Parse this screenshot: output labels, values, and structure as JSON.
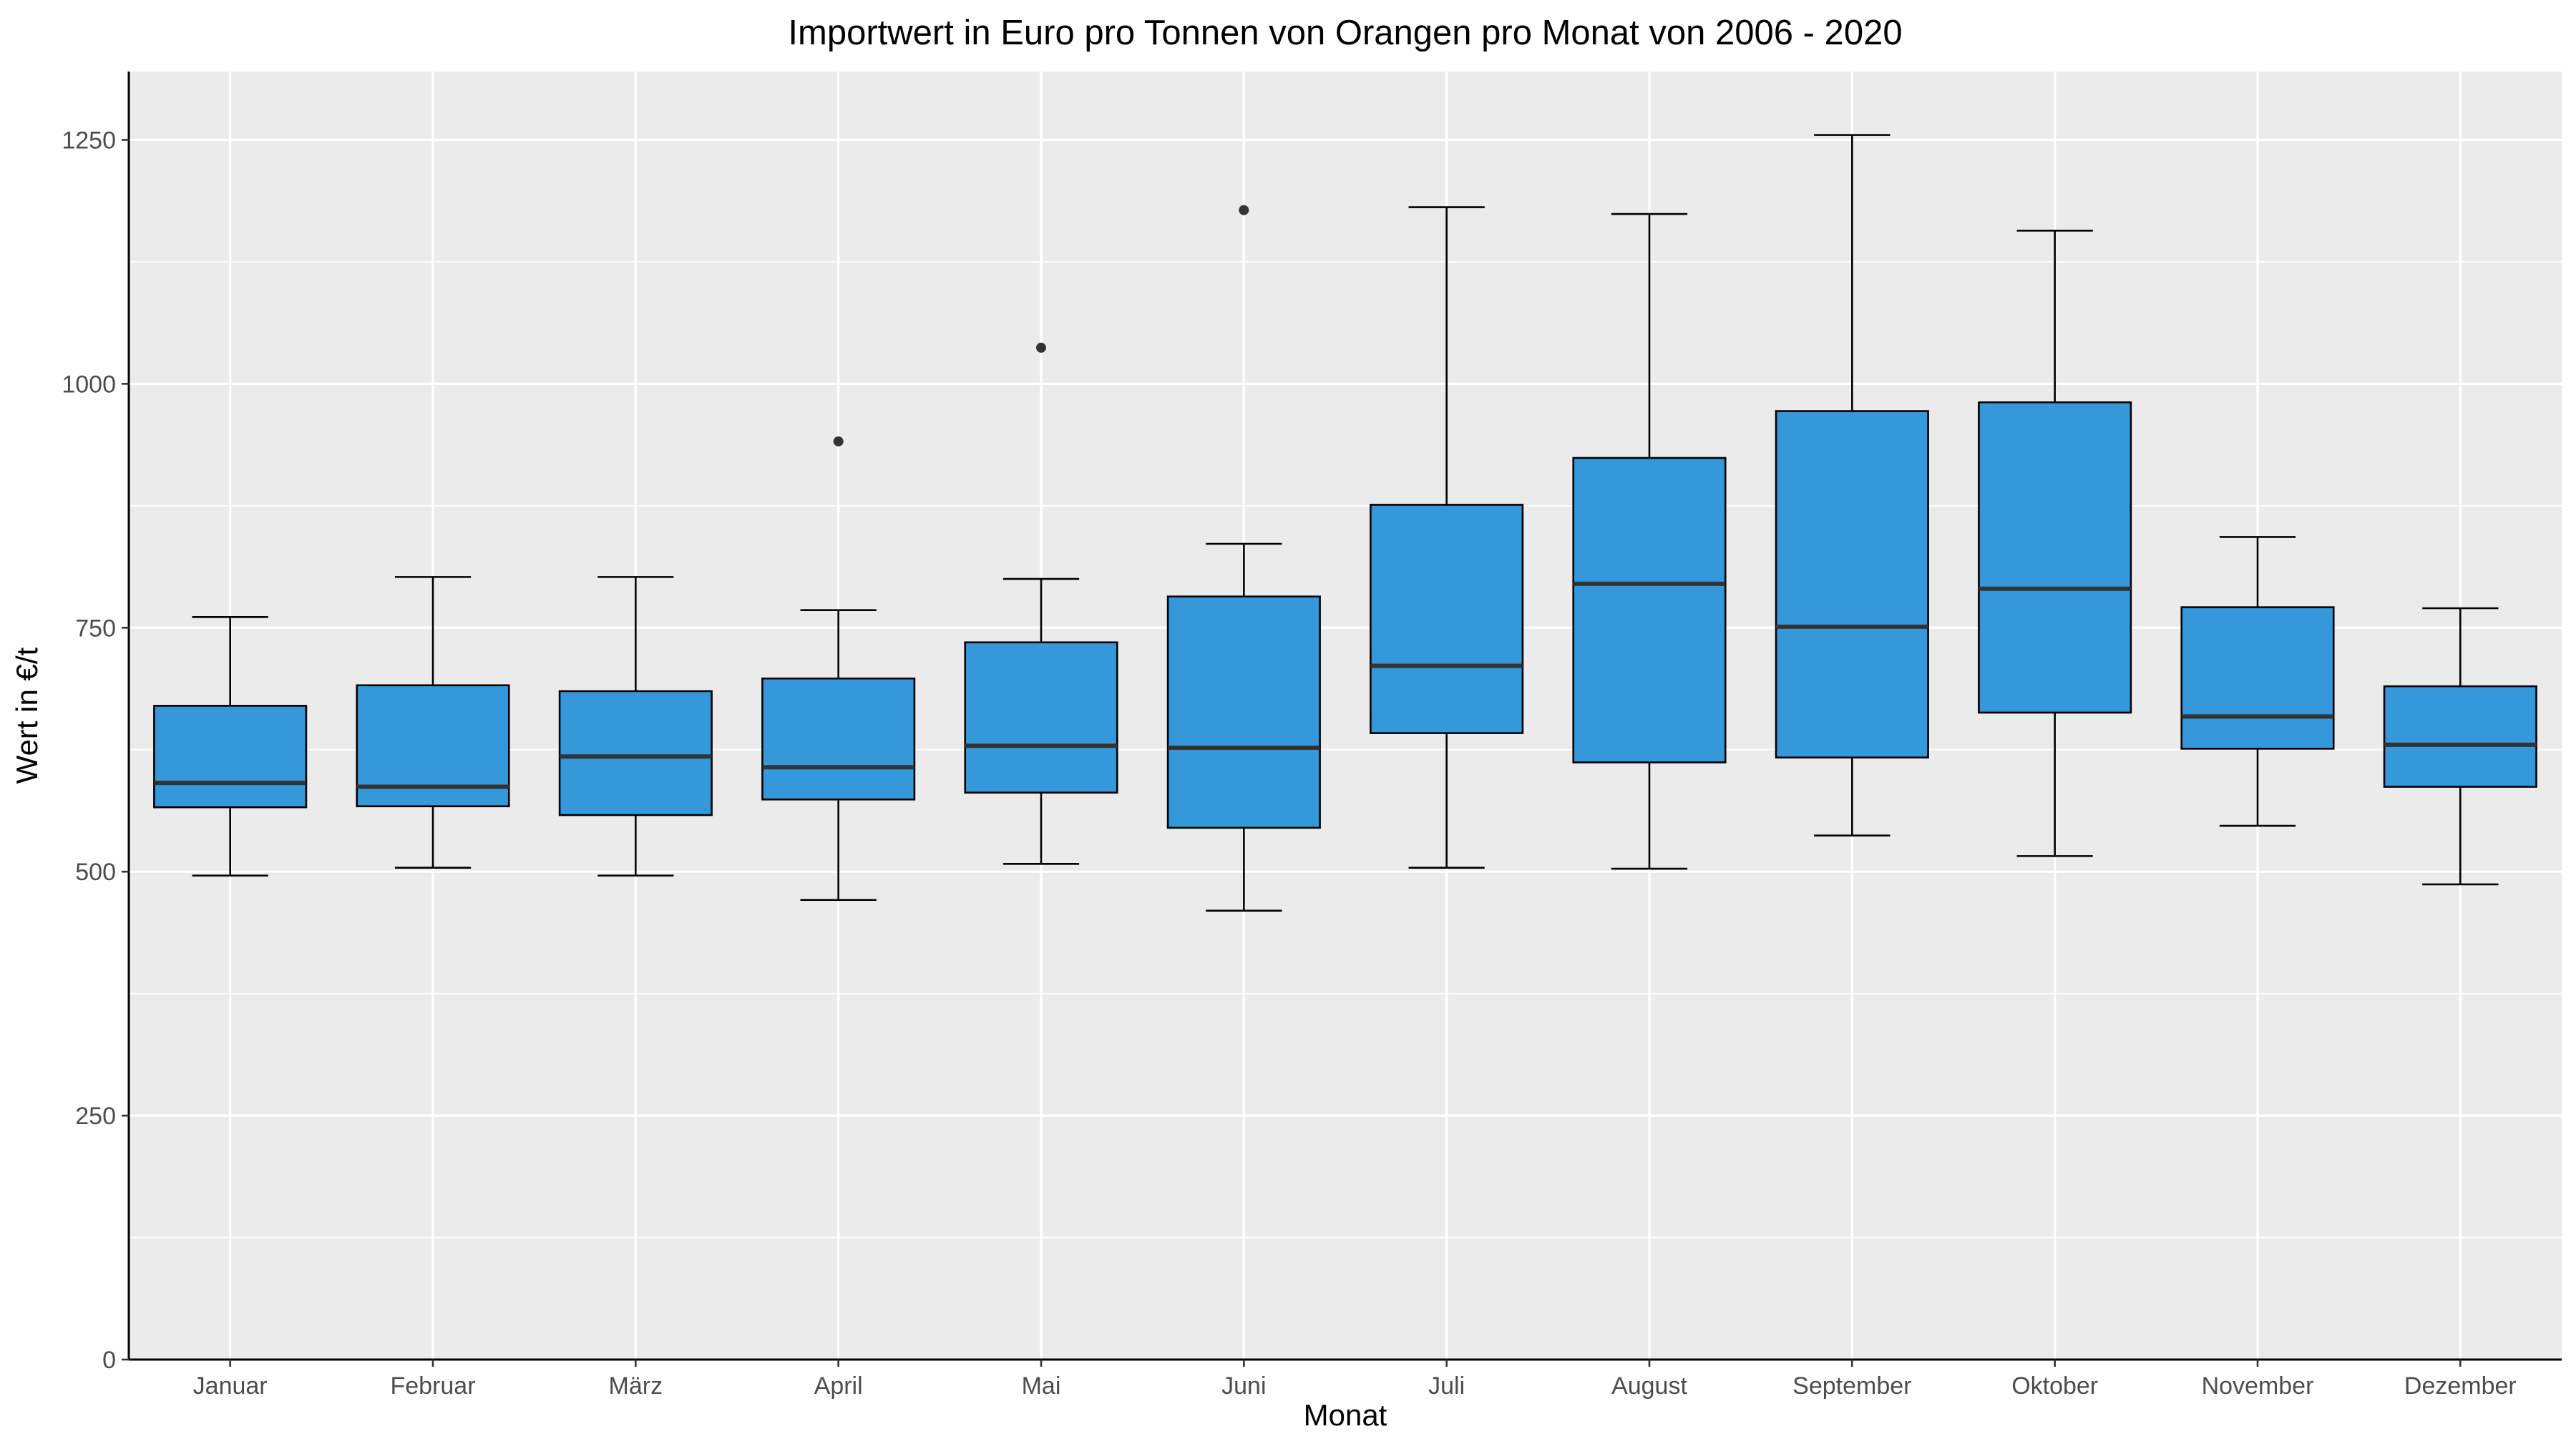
{
  "chart_data": {
    "type": "boxplot",
    "title": "Importwert in Euro pro Tonnen von Orangen pro Monat von 2006 - 2020",
    "xlabel": "Monat",
    "ylabel": "Wert in €/t",
    "ylim": [
      0,
      1320
    ],
    "yticks": [
      0,
      250,
      500,
      750,
      1000,
      1250
    ],
    "ytick_labels": [
      "0",
      "250",
      "500",
      "750",
      "1000",
      "1250"
    ],
    "grid": true,
    "legend": "none",
    "colors": {
      "box_fill": "#3498db",
      "panel": "#ebebeb",
      "grid": "#ffffff",
      "stroke": "#000000",
      "median": "#333333"
    },
    "categories": [
      "Januar",
      "Februar",
      "März",
      "April",
      "Mai",
      "Juni",
      "Juli",
      "August",
      "September",
      "Oktober",
      "November",
      "Dezember"
    ],
    "boxes": [
      {
        "whisker_low": 496,
        "q1": 566,
        "median": 591,
        "q3": 670,
        "whisker_high": 761,
        "outliers": []
      },
      {
        "whisker_low": 504,
        "q1": 567,
        "median": 587,
        "q3": 691,
        "whisker_high": 802,
        "outliers": []
      },
      {
        "whisker_low": 496,
        "q1": 558,
        "median": 618,
        "q3": 685,
        "whisker_high": 802,
        "outliers": []
      },
      {
        "whisker_low": 471,
        "q1": 574,
        "median": 607,
        "q3": 698,
        "whisker_high": 768,
        "outliers": [
          941
        ]
      },
      {
        "whisker_low": 508,
        "q1": 581,
        "median": 629,
        "q3": 735,
        "whisker_high": 800,
        "outliers": [
          1037
        ]
      },
      {
        "whisker_low": 460,
        "q1": 545,
        "median": 627,
        "q3": 782,
        "whisker_high": 836,
        "outliers": [
          1178
        ]
      },
      {
        "whisker_low": 504,
        "q1": 642,
        "median": 711,
        "q3": 876,
        "whisker_high": 1181,
        "outliers": []
      },
      {
        "whisker_low": 503,
        "q1": 612,
        "median": 795,
        "q3": 924,
        "whisker_high": 1174,
        "outliers": []
      },
      {
        "whisker_low": 537,
        "q1": 617,
        "median": 751,
        "q3": 972,
        "whisker_high": 1255,
        "outliers": []
      },
      {
        "whisker_low": 516,
        "q1": 663,
        "median": 790,
        "q3": 981,
        "whisker_high": 1157,
        "outliers": []
      },
      {
        "whisker_low": 547,
        "q1": 626,
        "median": 659,
        "q3": 771,
        "whisker_high": 843,
        "outliers": []
      },
      {
        "whisker_low": 487,
        "q1": 587,
        "median": 630,
        "q3": 690,
        "whisker_high": 770,
        "outliers": []
      }
    ]
  }
}
